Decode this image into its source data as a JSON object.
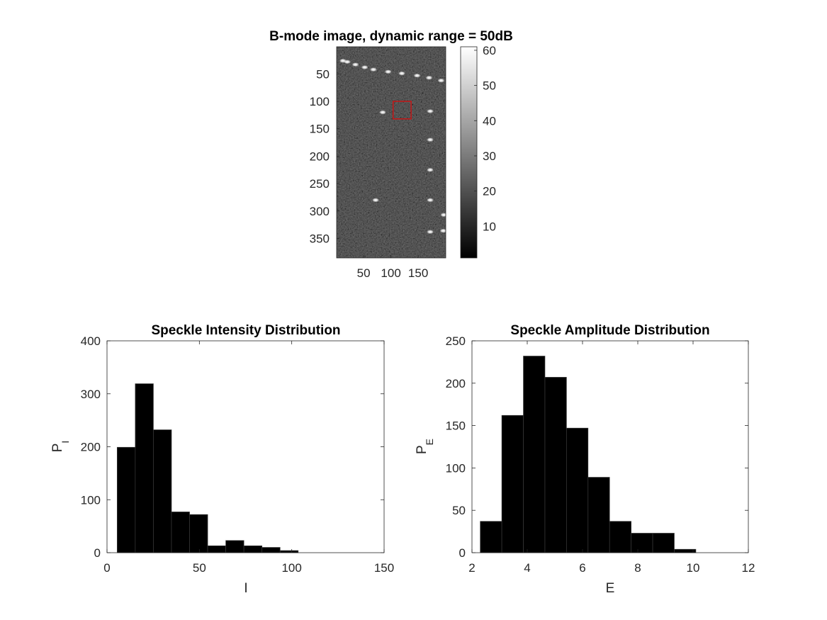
{
  "chart_data": [
    {
      "type": "heatmap",
      "title": "B-mode image, dynamic range = 50dB",
      "xlabel": "",
      "ylabel": "",
      "xticks": [
        "50",
        "100",
        "150"
      ],
      "yticks": [
        "50",
        "100",
        "150",
        "200",
        "250",
        "300",
        "350"
      ],
      "xlim": [
        0.5,
        200.5
      ],
      "ylim": [
        0.5,
        385.5
      ],
      "colormap": "gray",
      "colorbar": {
        "ticks": [
          "10",
          "20",
          "30",
          "40",
          "50",
          "60"
        ],
        "range": [
          1,
          61
        ]
      },
      "roi": {
        "x": [
          104,
          137
        ],
        "y": [
          100,
          132
        ],
        "color": "#cc1111"
      },
      "bright_points": [
        {
          "x": 12,
          "y": 26
        },
        {
          "x": 20,
          "y": 28
        },
        {
          "x": 35,
          "y": 33
        },
        {
          "x": 52,
          "y": 38
        },
        {
          "x": 68,
          "y": 42
        },
        {
          "x": 95,
          "y": 46
        },
        {
          "x": 120,
          "y": 49
        },
        {
          "x": 148,
          "y": 53
        },
        {
          "x": 170,
          "y": 57
        },
        {
          "x": 192,
          "y": 62
        },
        {
          "x": 85,
          "y": 120
        },
        {
          "x": 172,
          "y": 118
        },
        {
          "x": 172,
          "y": 170
        },
        {
          "x": 172,
          "y": 225
        },
        {
          "x": 72,
          "y": 280
        },
        {
          "x": 172,
          "y": 280
        },
        {
          "x": 197,
          "y": 307
        },
        {
          "x": 172,
          "y": 338
        },
        {
          "x": 196,
          "y": 336
        }
      ]
    },
    {
      "type": "bar",
      "title": "Speckle Intensity Distribution",
      "xlabel": "I",
      "ylabel": "P",
      "ylabel_sub": "I",
      "xlim": [
        0,
        150
      ],
      "ylim": [
        0,
        400
      ],
      "xticks": [
        "0",
        "50",
        "100",
        "150"
      ],
      "yticks": [
        "0",
        "100",
        "200",
        "300",
        "400"
      ],
      "bin_edges": [
        5.5,
        15.3,
        25.1,
        34.9,
        44.7,
        54.5,
        64.3,
        74.1,
        83.9,
        93.7,
        103.5
      ],
      "values": [
        199,
        319,
        232,
        77,
        72,
        13,
        23,
        13,
        10,
        4
      ]
    },
    {
      "type": "bar",
      "title": "Speckle Amplitude Distribution",
      "xlabel": "E",
      "ylabel": "P",
      "ylabel_sub": "E",
      "xlim": [
        2,
        12
      ],
      "ylim": [
        0,
        250
      ],
      "xticks": [
        "2",
        "4",
        "6",
        "8",
        "10",
        "12"
      ],
      "yticks": [
        "0",
        "50",
        "100",
        "150",
        "200",
        "250"
      ],
      "bin_edges": [
        2.3,
        3.08,
        3.86,
        4.64,
        5.42,
        6.2,
        6.98,
        7.76,
        8.54,
        9.32,
        10.1
      ],
      "values": [
        37,
        162,
        232,
        207,
        147,
        89,
        37,
        23,
        23,
        4
      ]
    }
  ]
}
